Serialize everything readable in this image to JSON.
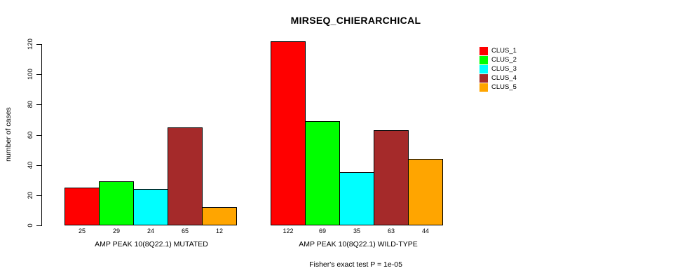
{
  "chart_data": {
    "type": "bar",
    "title": "MIRSEQ_CHIERARCHICAL",
    "ylabel": "number of cases",
    "xlabel": "",
    "ylim": [
      0,
      120
    ],
    "yticks": [
      0,
      20,
      40,
      60,
      80,
      100,
      120
    ],
    "grid": false,
    "legend_position": "top-right",
    "series_labels": [
      "CLUS_1",
      "CLUS_2",
      "CLUS_3",
      "CLUS_4",
      "CLUS_5"
    ],
    "colors": [
      "#ff0000",
      "#00ff00",
      "#00ffff",
      "#a52a2a",
      "#ffa500"
    ],
    "groups": [
      {
        "label": "AMP PEAK 10(8Q22.1) MUTATED",
        "values": [
          25,
          29,
          24,
          65,
          12
        ]
      },
      {
        "label": "AMP PEAK 10(8Q22.1) WILD-TYPE",
        "values": [
          122,
          69,
          35,
          63,
          44
        ]
      }
    ],
    "caption": "Fisher's exact test P = 1e-05"
  }
}
